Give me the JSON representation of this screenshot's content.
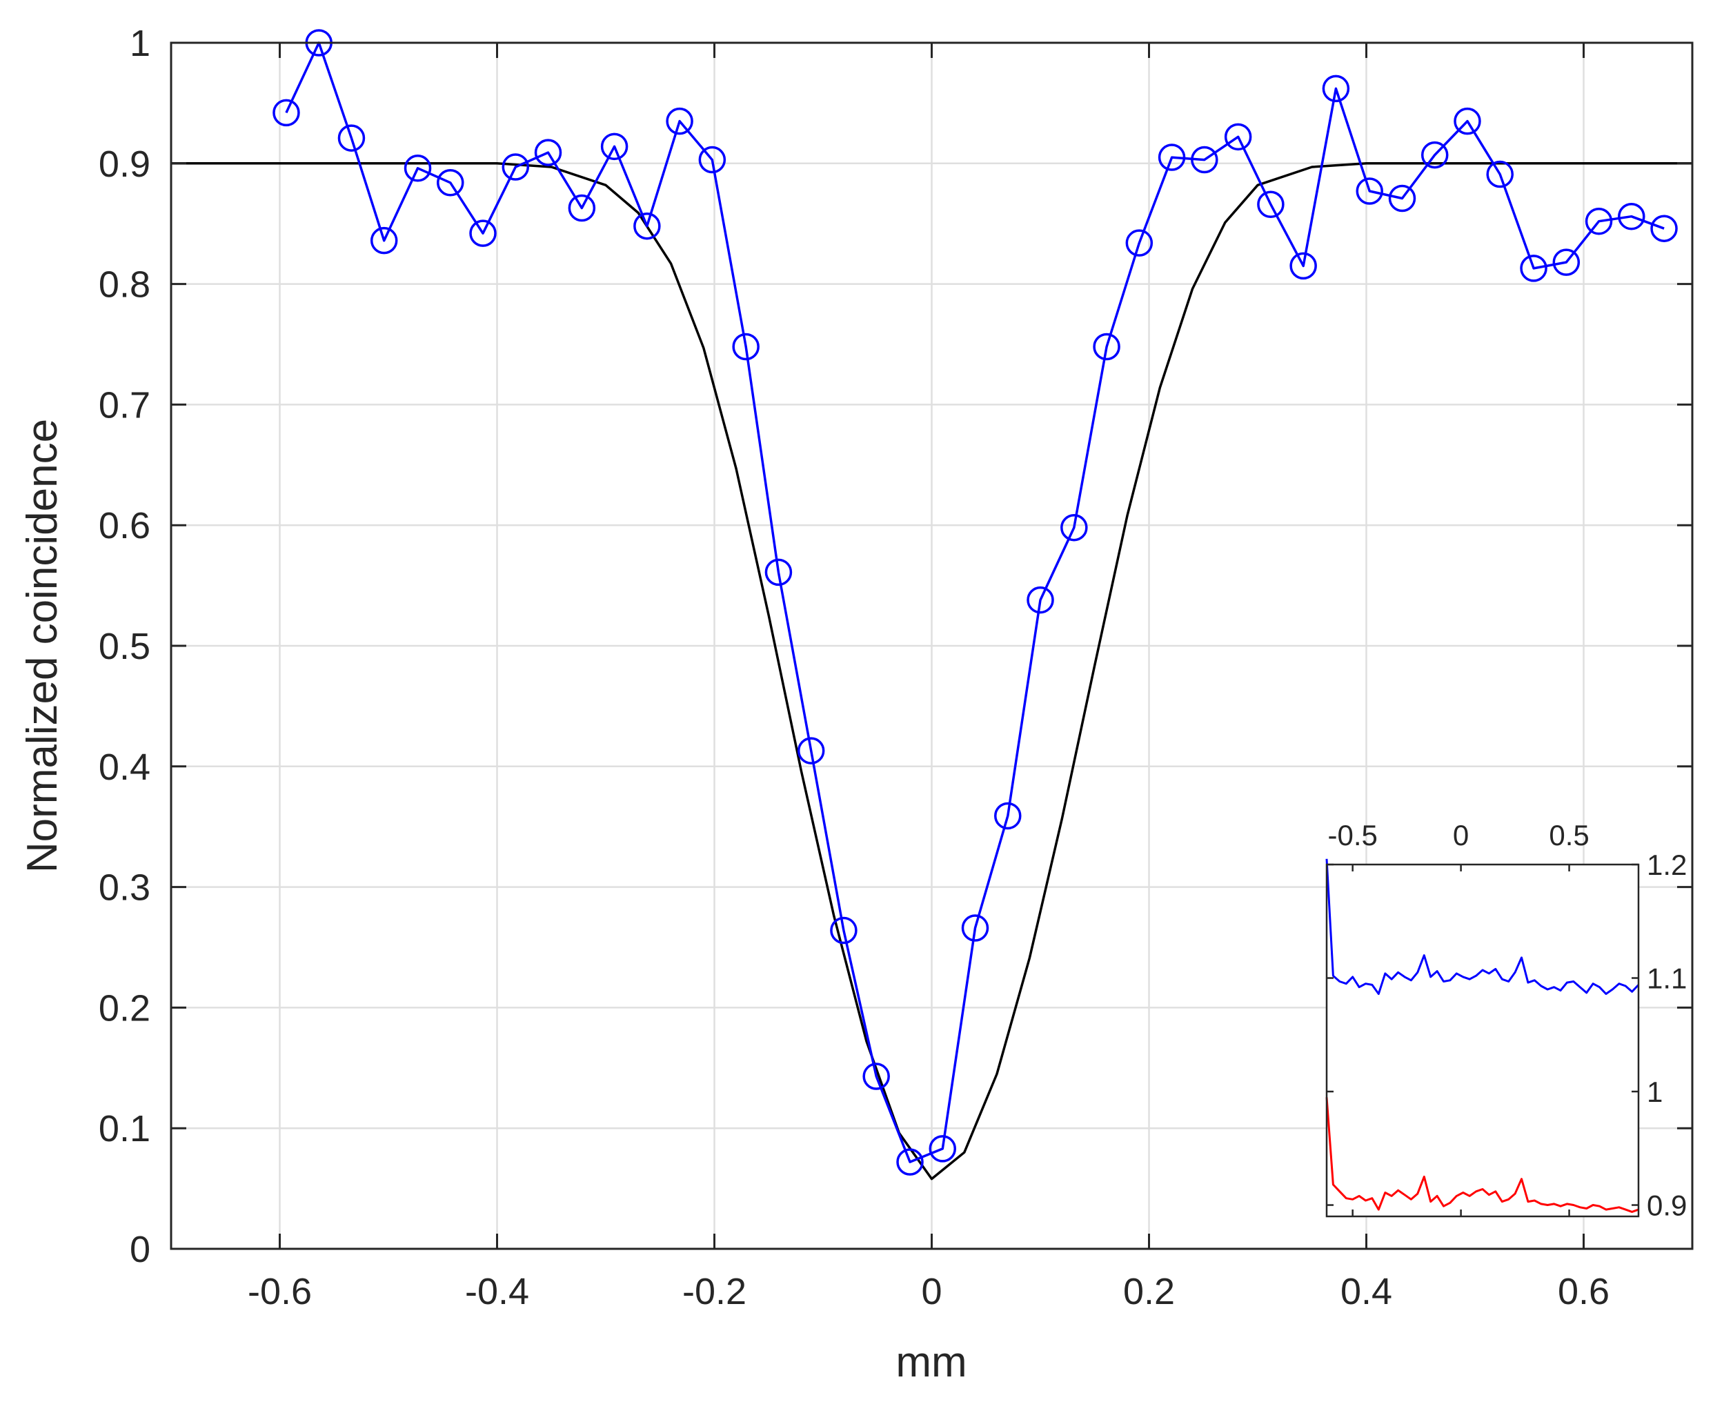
{
  "chart_data": [
    {
      "type": "line",
      "title": "",
      "xlabel": "mm",
      "ylabel": "Normalized coincidence",
      "xlim": [
        -0.7,
        0.7
      ],
      "ylim": [
        0,
        1
      ],
      "xticks": [
        -0.6,
        -0.4,
        -0.2,
        0,
        0.2,
        0.4,
        0.6
      ],
      "xtick_labels": [
        "-0.6",
        "-0.4",
        "-0.2",
        "0",
        "0.2",
        "0.4",
        "0.6"
      ],
      "yticks": [
        0,
        0.1,
        0.2,
        0.3,
        0.4,
        0.5,
        0.6,
        0.7,
        0.8,
        0.9,
        1
      ],
      "ytick_labels": [
        "0",
        "0.1",
        "0.2",
        "0.3",
        "0.4",
        "0.5",
        "0.6",
        "0.7",
        "0.8",
        "0.9",
        "1"
      ],
      "grid": true,
      "series": [
        {
          "color": "#0000ff",
          "marker": "circle",
          "x": [
            -0.594,
            -0.564,
            -0.534,
            -0.504,
            -0.473,
            -0.443,
            -0.413,
            -0.383,
            -0.353,
            -0.322,
            -0.292,
            -0.262,
            -0.232,
            -0.202,
            -0.171,
            -0.141,
            -0.111,
            -0.081,
            -0.051,
            -0.02,
            0.01,
            0.04,
            0.07,
            0.1,
            0.131,
            0.161,
            0.191,
            0.221,
            0.251,
            0.282,
            0.312,
            0.342,
            0.372,
            0.403,
            0.433,
            0.463,
            0.493,
            0.523,
            0.554,
            0.584,
            0.614,
            0.644,
            0.674
          ],
          "y": [
            0.942,
            1.0,
            0.921,
            0.836,
            0.896,
            0.884,
            0.842,
            0.897,
            0.909,
            0.863,
            0.914,
            0.848,
            0.935,
            0.903,
            0.748,
            0.561,
            0.413,
            0.264,
            0.143,
            0.072,
            0.083,
            0.266,
            0.359,
            0.538,
            0.598,
            0.748,
            0.834,
            0.905,
            0.903,
            0.922,
            0.866,
            0.815,
            0.962,
            0.877,
            0.871,
            0.907,
            0.935,
            0.891,
            0.813,
            0.818,
            0.852,
            0.856,
            0.846
          ]
        },
        {
          "color": "#000000",
          "marker": "none",
          "style": "fit",
          "x": [
            -0.7,
            -0.6,
            -0.5,
            -0.45,
            -0.4,
            -0.35,
            -0.3,
            -0.27,
            -0.24,
            -0.21,
            -0.18,
            -0.15,
            -0.12,
            -0.09,
            -0.06,
            -0.03,
            0.0,
            0.03,
            0.06,
            0.09,
            0.12,
            0.15,
            0.18,
            0.21,
            0.24,
            0.27,
            0.3,
            0.35,
            0.4,
            0.5,
            0.6,
            0.7
          ],
          "y": [
            0.9,
            0.9,
            0.9,
            0.9,
            0.9,
            0.897,
            0.882,
            0.859,
            0.817,
            0.747,
            0.647,
            0.525,
            0.396,
            0.276,
            0.172,
            0.096,
            0.058,
            0.08,
            0.145,
            0.241,
            0.357,
            0.484,
            0.608,
            0.714,
            0.796,
            0.851,
            0.882,
            0.897,
            0.9,
            0.9,
            0.9,
            0.9
          ]
        }
      ]
    },
    {
      "type": "line",
      "title": "",
      "xlabel": "",
      "ylabel": "",
      "xlim": [
        -0.62,
        0.82
      ],
      "ylim": [
        0.89,
        1.2
      ],
      "xticks": [
        -0.5,
        0,
        0.5
      ],
      "xtick_labels": [
        "-0.5",
        "0",
        "0.5"
      ],
      "yticks": [
        0.9,
        1,
        1.1,
        1.2
      ],
      "ytick_labels": [
        "0.9",
        "1",
        "1.1",
        "1.2"
      ],
      "grid": false,
      "xaxis_location": "top",
      "yaxis_location": "right",
      "series": [
        {
          "color": "#0000ff",
          "x": [
            -0.62,
            -0.59,
            -0.56,
            -0.53,
            -0.5,
            -0.47,
            -0.44,
            -0.41,
            -0.38,
            -0.35,
            -0.32,
            -0.29,
            -0.26,
            -0.23,
            -0.2,
            -0.17,
            -0.14,
            -0.11,
            -0.08,
            -0.05,
            -0.02,
            0.01,
            0.04,
            0.07,
            0.1,
            0.13,
            0.16,
            0.19,
            0.22,
            0.25,
            0.28,
            0.31,
            0.34,
            0.37,
            0.4,
            0.43,
            0.46,
            0.49,
            0.52,
            0.55,
            0.58,
            0.61,
            0.64,
            0.67,
            0.7,
            0.73,
            0.76,
            0.79,
            0.82
          ],
          "y": [
            1.205,
            1.102,
            1.097,
            1.095,
            1.101,
            1.092,
            1.095,
            1.094,
            1.086,
            1.104,
            1.099,
            1.105,
            1.101,
            1.098,
            1.105,
            1.12,
            1.101,
            1.106,
            1.097,
            1.098,
            1.104,
            1.101,
            1.099,
            1.102,
            1.107,
            1.104,
            1.108,
            1.099,
            1.097,
            1.105,
            1.118,
            1.096,
            1.098,
            1.093,
            1.09,
            1.092,
            1.089,
            1.096,
            1.097,
            1.092,
            1.087,
            1.095,
            1.092,
            1.086,
            1.09,
            1.095,
            1.093,
            1.088,
            1.094
          ]
        },
        {
          "color": "#ff0000",
          "x": [
            -0.62,
            -0.59,
            -0.56,
            -0.53,
            -0.5,
            -0.47,
            -0.44,
            -0.41,
            -0.38,
            -0.35,
            -0.32,
            -0.29,
            -0.26,
            -0.23,
            -0.2,
            -0.17,
            -0.14,
            -0.11,
            -0.08,
            -0.05,
            -0.02,
            0.01,
            0.04,
            0.07,
            0.1,
            0.13,
            0.16,
            0.19,
            0.22,
            0.25,
            0.28,
            0.31,
            0.34,
            0.37,
            0.4,
            0.43,
            0.46,
            0.49,
            0.52,
            0.55,
            0.58,
            0.61,
            0.64,
            0.67,
            0.7,
            0.73,
            0.76,
            0.79,
            0.82
          ],
          "y": [
            0.995,
            0.918,
            0.912,
            0.906,
            0.905,
            0.908,
            0.904,
            0.906,
            0.896,
            0.911,
            0.908,
            0.913,
            0.909,
            0.905,
            0.91,
            0.925,
            0.903,
            0.908,
            0.899,
            0.902,
            0.908,
            0.911,
            0.908,
            0.912,
            0.914,
            0.909,
            0.912,
            0.903,
            0.905,
            0.91,
            0.923,
            0.903,
            0.904,
            0.901,
            0.9,
            0.901,
            0.899,
            0.901,
            0.9,
            0.898,
            0.897,
            0.9,
            0.899,
            0.896,
            0.897,
            0.898,
            0.896,
            0.894,
            0.896
          ]
        }
      ]
    }
  ]
}
